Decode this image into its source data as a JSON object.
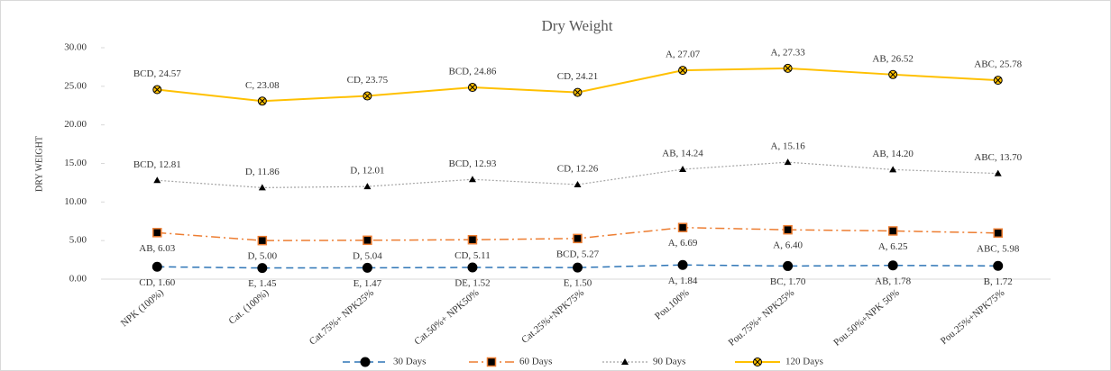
{
  "chart_data": {
    "type": "line",
    "title": "Dry Weight",
    "y_label": "DRY WEIGHT",
    "categories": [
      "NPK (100%)",
      "Cat. (100%)",
      "Cat.75%+ NPK25%",
      "Cat.50%+ NPK50%",
      "Cat.25%+NPK75%",
      "Pou.100%",
      "Pou.75%+ NPK25%",
      "Pou.50%+NPK 50%",
      "Pou.25%+NPK75%"
    ],
    "series": [
      {
        "name": "30 Days",
        "color": "#2e75b6",
        "values": [
          1.6,
          1.45,
          1.47,
          1.52,
          1.5,
          1.84,
          1.7,
          1.78,
          1.72
        ],
        "value_labels": [
          "CD, 1.60",
          "E, 1.45",
          "E, 1.47",
          "DE, 1.52",
          "E, 1.50",
          "A, 1.84",
          "BC, 1.70",
          "AB, 1.78",
          "B, 1.72"
        ]
      },
      {
        "name": "60 Days",
        "color": "#ed7d31",
        "values": [
          6.03,
          5.0,
          5.04,
          5.11,
          5.27,
          6.69,
          6.4,
          6.25,
          5.98
        ],
        "value_labels": [
          "AB, 6.03",
          "D, 5.00",
          "D, 5.04",
          "CD, 5.11",
          "BCD, 5.27",
          "A, 6.69",
          "A, 6.40",
          "A, 6.25",
          "ABC, 5.98"
        ]
      },
      {
        "name": "90 Days",
        "color": "#a5a5a5",
        "values": [
          12.81,
          11.86,
          12.01,
          12.93,
          12.26,
          14.24,
          15.16,
          14.2,
          13.7
        ],
        "value_labels": [
          "BCD, 12.81",
          "D, 11.86",
          "D, 12.01",
          "BCD, 12.93",
          "CD, 12.26",
          "AB, 14.24",
          "A, 15.16",
          "AB, 14.20",
          "ABC, 13.70"
        ]
      },
      {
        "name": "120 Days",
        "color": "#ffc000",
        "values": [
          24.57,
          23.08,
          23.75,
          24.86,
          24.21,
          27.07,
          27.33,
          26.52,
          25.78
        ],
        "value_labels": [
          "BCD, 24.57",
          "C, 23.08",
          "CD, 23.75",
          "BCD, 24.86",
          "CD, 24.21",
          "A, 27.07",
          "A, 27.33",
          "AB, 26.52",
          "ABC, 25.78"
        ]
      }
    ],
    "ylim": [
      0,
      30
    ],
    "yticks": [
      {
        "value": 0,
        "label": "0.00"
      },
      {
        "value": 5,
        "label": "5.00"
      },
      {
        "value": 10,
        "label": "10.00"
      },
      {
        "value": 15,
        "label": "15.00"
      },
      {
        "value": 20,
        "label": "20.00"
      },
      {
        "value": 25,
        "label": "25.00"
      },
      {
        "value": 30,
        "label": "30.00"
      }
    ],
    "grid": false,
    "legend": "bottom"
  }
}
